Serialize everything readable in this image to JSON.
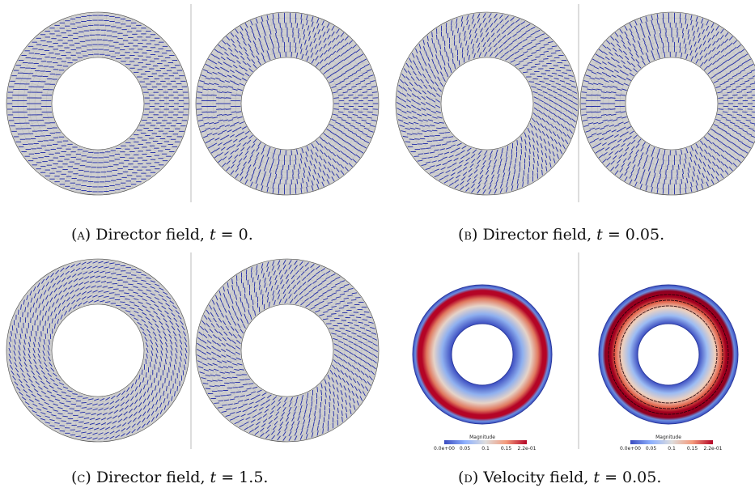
{
  "captions": {
    "a": {
      "tag": "(a)",
      "text": "Director field, ",
      "math": "t",
      "value": " = 0."
    },
    "b": {
      "tag": "(b)",
      "text": "Director field, ",
      "math": "t",
      "value": " = 0.05."
    },
    "c": {
      "tag": "(c)",
      "text": "Director field, ",
      "math": "t",
      "value": " = 1.5."
    },
    "d": {
      "tag": "(d)",
      "text": "Velocity field, ",
      "math": "t",
      "value": " = 0.05."
    }
  },
  "colorbar": {
    "title": "Magnitude",
    "ticks_left": [
      "0.0e+00",
      "0.05",
      "0.1",
      "0.15",
      "2.2e-01"
    ],
    "ticks_right": [
      "0.0e+00",
      "0.05",
      "0.1",
      "0.15",
      "2.2e-01"
    ]
  },
  "colors": {
    "mesh_fill": "#cfcfcf",
    "director_blue": "#1f2aa6",
    "velocity_low": "#3b4cc0",
    "velocity_mid": "#dddddd",
    "velocity_high": "#b40426",
    "divider": "#bbbbbb"
  }
}
